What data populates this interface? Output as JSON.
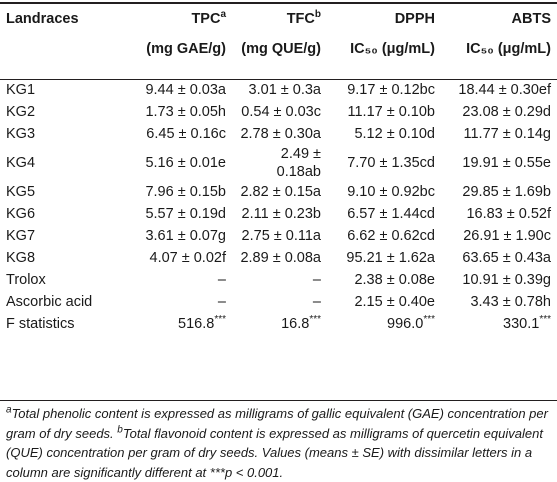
{
  "header": {
    "landraces": "Landraces",
    "tpc": {
      "label": "TPC",
      "sup": "a",
      "unit": "(mg GAE/g)"
    },
    "tfc": {
      "label": "TFC",
      "sup": "b",
      "unit": "(mg QUE/g)"
    },
    "dpph": {
      "label": "DPPH",
      "unit": "IC₅₀ (μg/mL)"
    },
    "abts": {
      "label": "ABTS",
      "unit": "IC₅₀ (μg/mL)"
    }
  },
  "rows": [
    {
      "name": "KG1",
      "tpc": "9.44 ± 0.03a",
      "tfc": "3.01 ± 0.3a",
      "dpph": "9.17 ± 0.12bc",
      "abts": "18.44 ± 0.30ef"
    },
    {
      "name": "KG2",
      "tpc": "1.73 ± 0.05h",
      "tfc": "0.54 ± 0.03c",
      "dpph": "11.17 ± 0.10b",
      "abts": "23.08 ± 0.29d"
    },
    {
      "name": "KG3",
      "tpc": "6.45 ± 0.16c",
      "tfc": "2.78 ± 0.30a",
      "dpph": "5.12 ± 0.10d",
      "abts": "11.77 ± 0.14g"
    },
    {
      "name": "KG4",
      "tpc": "5.16 ± 0.01e",
      "tfc": "2.49 ± 0.18ab",
      "dpph": "7.70 ± 1.35cd",
      "abts": "19.91 ± 0.55e"
    },
    {
      "name": "KG5",
      "tpc": "7.96 ± 0.15b",
      "tfc": "2.82 ± 0.15a",
      "dpph": "9.10 ± 0.92bc",
      "abts": "29.85 ± 1.69b"
    },
    {
      "name": "KG6",
      "tpc": "5.57 ± 0.19d",
      "tfc": "2.11 ± 0.23b",
      "dpph": "6.57 ± 1.44cd",
      "abts": "16.83 ± 0.52f"
    },
    {
      "name": "KG7",
      "tpc": "3.61 ± 0.07g",
      "tfc": "2.75 ± 0.11a",
      "dpph": "6.62 ± 0.62cd",
      "abts": "26.91 ± 1.90c"
    },
    {
      "name": "KG8",
      "tpc": "4.07 ± 0.02f",
      "tfc": "2.89 ± 0.08a",
      "dpph": "95.21 ± 1.62a",
      "abts": "63.65 ± 0.43a"
    },
    {
      "name": "Trolox",
      "tpc": "–",
      "tfc": "–",
      "dpph": "2.38 ± 0.08e",
      "abts": "10.91 ± 0.39g"
    },
    {
      "name": "Ascorbic acid",
      "tpc": "–",
      "tfc": "–",
      "dpph": "2.15 ± 0.40e",
      "abts": "3.43 ± 0.78h"
    }
  ],
  "fstats": {
    "name": "F statistics",
    "tpc": "516.8",
    "tfc": "16.8",
    "dpph": "996.0",
    "abts": "330.1",
    "sig": "***"
  },
  "footnote": {
    "a_sup": "a",
    "a_text": "Total phenolic content is expressed as milligrams of gallic equivalent (GAE) concentration per gram of dry seeds.",
    "b_sup": "b",
    "b_text": "Total flavonoid content is expressed as milligrams of quercetin equivalent (QUE) concentration per gram of dry seeds. Values (means ± SE) with dissimilar letters in a column are significantly different at ***p < 0.001."
  }
}
